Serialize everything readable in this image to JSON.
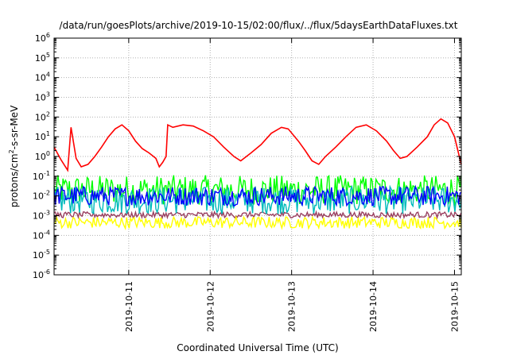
{
  "chart_data": {
    "type": "line",
    "title": "/data/run/goesPlots/archive/2019-10-15/02:00/flux/../flux/5daysEarthDataFluxes.txt",
    "xlabel": "Coordinated Universal Time (UTC)",
    "ylabel_main": "protons/cm",
    "ylabel_sup": "2",
    "ylabel_tail": "-s-sr-MeV",
    "yscale": "log",
    "ylim": [
      1e-06,
      1000000.0
    ],
    "y_ticks": [
      {
        "value": 1e-06,
        "exp": "-6"
      },
      {
        "value": 1e-05,
        "exp": "-5"
      },
      {
        "value": 0.0001,
        "exp": "-4"
      },
      {
        "value": 0.001,
        "exp": "-3"
      },
      {
        "value": 0.01,
        "exp": "-2"
      },
      {
        "value": 0.1,
        "exp": "-1"
      },
      {
        "value": 1,
        "exp": "0"
      },
      {
        "value": 10,
        "exp": "1"
      },
      {
        "value": 100,
        "exp": "2"
      },
      {
        "value": 1000,
        "exp": "3"
      },
      {
        "value": 10000,
        "exp": "4"
      },
      {
        "value": 100000,
        "exp": "5"
      },
      {
        "value": 1000000,
        "exp": "6"
      }
    ],
    "y_tick_base": "10",
    "x_range_days": [
      "2019-10-10T02:00",
      "2019-10-15T02:00"
    ],
    "x_ticks": [
      {
        "date": "2019-10-11T00:00",
        "label": "2019-10-11"
      },
      {
        "date": "2019-10-12T00:00",
        "label": "2019-10-12"
      },
      {
        "date": "2019-10-13T00:00",
        "label": "2019-10-13"
      },
      {
        "date": "2019-10-14T00:00",
        "label": "2019-10-14"
      },
      {
        "date": "2019-10-15T00:00",
        "label": "2019-10-15"
      }
    ],
    "grid": true,
    "series": [
      {
        "color": "#ff0000",
        "style": "line",
        "points": [
          [
            "2019-10-10T02:00",
            3
          ],
          [
            "2019-10-10T04:00",
            0.7
          ],
          [
            "2019-10-10T06:00",
            0.2
          ],
          [
            "2019-10-10T07:00",
            30
          ],
          [
            "2019-10-10T08:30",
            0.8
          ],
          [
            "2019-10-10T10:00",
            0.3
          ],
          [
            "2019-10-10T12:00",
            0.4
          ],
          [
            "2019-10-10T14:00",
            1.0
          ],
          [
            "2019-10-10T16:00",
            3
          ],
          [
            "2019-10-10T18:00",
            10
          ],
          [
            "2019-10-10T20:00",
            25
          ],
          [
            "2019-10-10T22:00",
            40
          ],
          [
            "2019-10-11T00:00",
            20
          ],
          [
            "2019-10-11T02:00",
            6
          ],
          [
            "2019-10-11T04:00",
            2.5
          ],
          [
            "2019-10-11T06:00",
            1.5
          ],
          [
            "2019-10-11T08:00",
            0.8
          ],
          [
            "2019-10-11T09:00",
            0.3
          ],
          [
            "2019-10-11T10:00",
            0.5
          ],
          [
            "2019-10-11T11:00",
            1
          ],
          [
            "2019-10-11T11:30",
            40
          ],
          [
            "2019-10-11T13:00",
            30
          ],
          [
            "2019-10-11T16:00",
            40
          ],
          [
            "2019-10-11T19:00",
            35
          ],
          [
            "2019-10-11T22:00",
            20
          ],
          [
            "2019-10-12T01:00",
            10
          ],
          [
            "2019-10-12T04:00",
            3
          ],
          [
            "2019-10-12T07:00",
            1
          ],
          [
            "2019-10-12T09:00",
            0.6
          ],
          [
            "2019-10-12T12:00",
            1.5
          ],
          [
            "2019-10-12T15:00",
            4
          ],
          [
            "2019-10-12T18:00",
            15
          ],
          [
            "2019-10-12T21:00",
            30
          ],
          [
            "2019-10-12T23:00",
            25
          ],
          [
            "2019-10-13T02:00",
            6
          ],
          [
            "2019-10-13T04:00",
            2
          ],
          [
            "2019-10-13T06:00",
            0.6
          ],
          [
            "2019-10-13T08:00",
            0.4
          ],
          [
            "2019-10-13T10:00",
            1
          ],
          [
            "2019-10-13T13:00",
            3
          ],
          [
            "2019-10-13T16:00",
            10
          ],
          [
            "2019-10-13T19:00",
            30
          ],
          [
            "2019-10-13T22:00",
            40
          ],
          [
            "2019-10-14T01:00",
            20
          ],
          [
            "2019-10-14T04:00",
            6
          ],
          [
            "2019-10-14T06:00",
            2
          ],
          [
            "2019-10-14T08:00",
            0.8
          ],
          [
            "2019-10-14T10:00",
            1
          ],
          [
            "2019-10-14T13:00",
            3
          ],
          [
            "2019-10-14T16:00",
            10
          ],
          [
            "2019-10-14T18:00",
            40
          ],
          [
            "2019-10-14T20:00",
            80
          ],
          [
            "2019-10-14T22:00",
            50
          ],
          [
            "2019-10-15T00:00",
            10
          ],
          [
            "2019-10-15T01:00",
            2
          ],
          [
            "2019-10-15T02:00",
            0.4
          ]
        ]
      },
      {
        "color": "#00ff00",
        "style": "noisy",
        "center": 0.02,
        "spread": 0.75
      },
      {
        "color": "#00bbbb",
        "style": "noisy",
        "center": 0.006,
        "spread": 0.7
      },
      {
        "color": "#0000ff",
        "style": "noisy",
        "center": 0.01,
        "spread": 0.5
      },
      {
        "color": "#ffff00",
        "style": "noisy",
        "center": 0.00045,
        "spread": 0.3
      },
      {
        "color": "#9a4060",
        "style": "noisy",
        "center": 0.0011,
        "spread": 0.15
      }
    ]
  }
}
